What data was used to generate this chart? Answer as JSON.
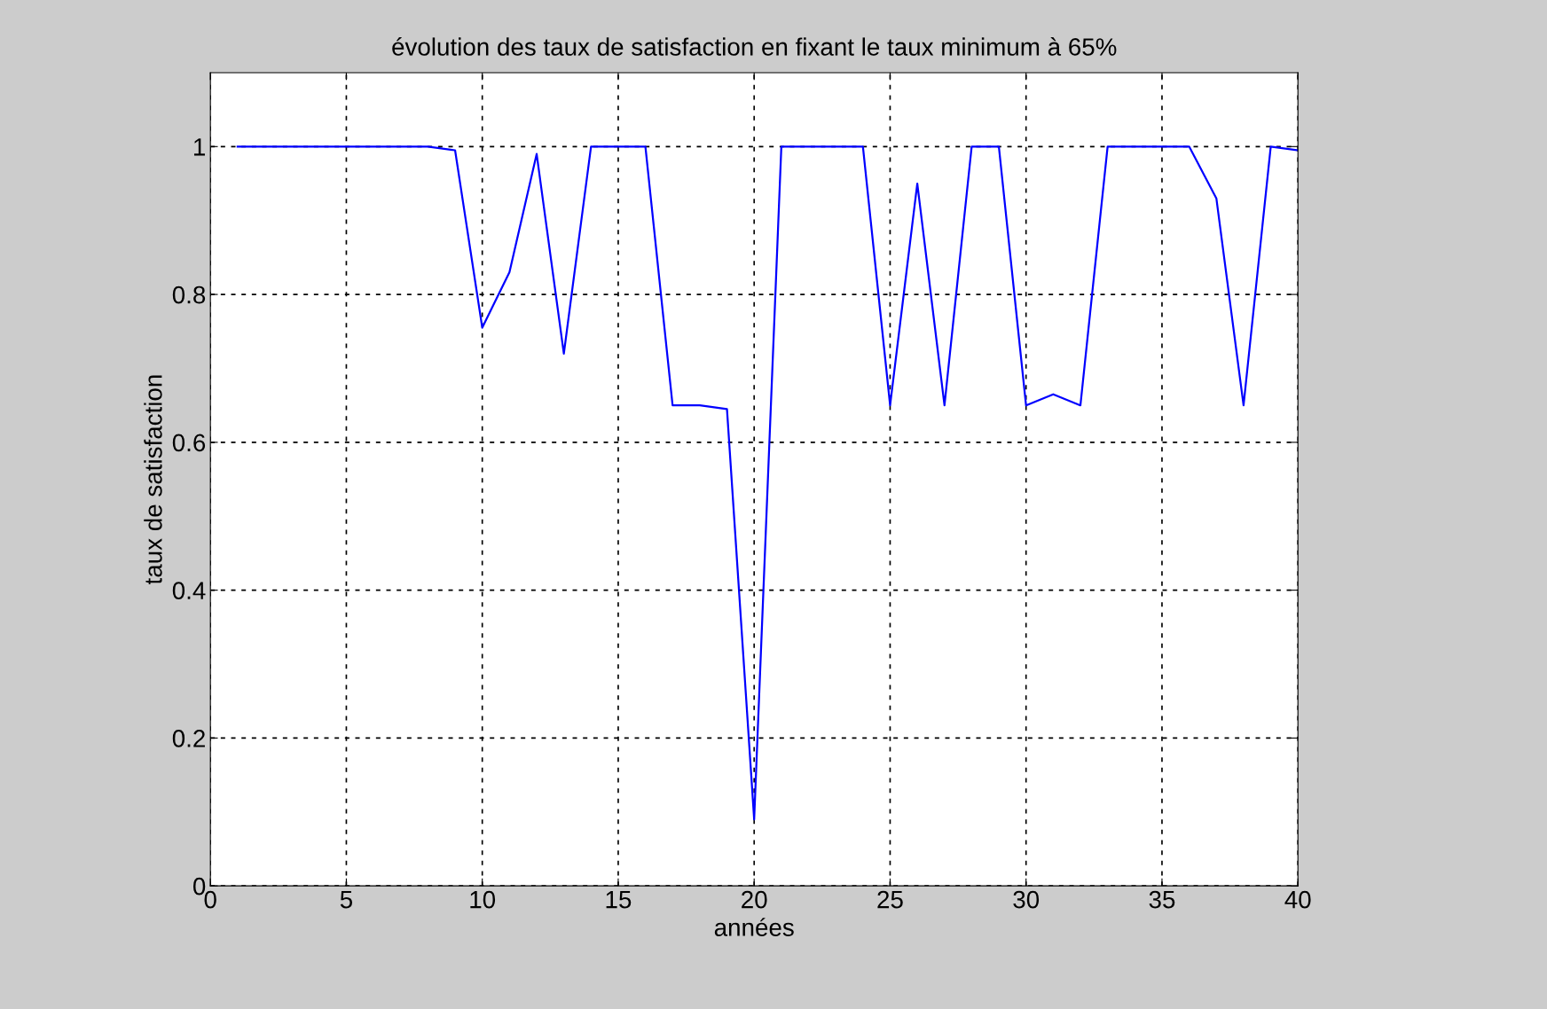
{
  "chart_data": {
    "type": "line",
    "title": "évolution des taux de satisfaction en fixant le taux minimum à 65%",
    "xlabel": "années",
    "ylabel": "taux de satisfaction",
    "x": [
      1,
      2,
      3,
      4,
      5,
      6,
      7,
      8,
      9,
      10,
      11,
      12,
      13,
      14,
      15,
      16,
      17,
      18,
      19,
      20,
      21,
      22,
      23,
      24,
      25,
      26,
      27,
      28,
      29,
      30,
      31,
      32,
      33,
      34,
      35,
      36,
      37,
      38,
      39,
      40
    ],
    "series": [
      {
        "color": "#0000ff",
        "values": [
          1,
          1,
          1,
          1,
          1,
          1,
          1,
          1,
          0.995,
          0.755,
          0.83,
          0.99,
          0.72,
          1,
          1,
          1,
          0.65,
          0.65,
          0.645,
          0.09,
          1,
          1,
          1,
          1,
          0.65,
          0.95,
          0.65,
          1,
          1,
          0.65,
          0.665,
          0.65,
          1,
          1,
          1,
          1,
          0.93,
          0.65,
          1,
          0.995
        ]
      }
    ],
    "xlim": [
      0,
      40
    ],
    "xticks": [
      0,
      5,
      10,
      15,
      20,
      25,
      30,
      35,
      40
    ],
    "ylim": [
      0,
      1.1
    ],
    "yticks": [
      0,
      0.2,
      0.4,
      0.6,
      0.8,
      1
    ],
    "grid": true,
    "line_style": "solid",
    "marker": "none"
  }
}
